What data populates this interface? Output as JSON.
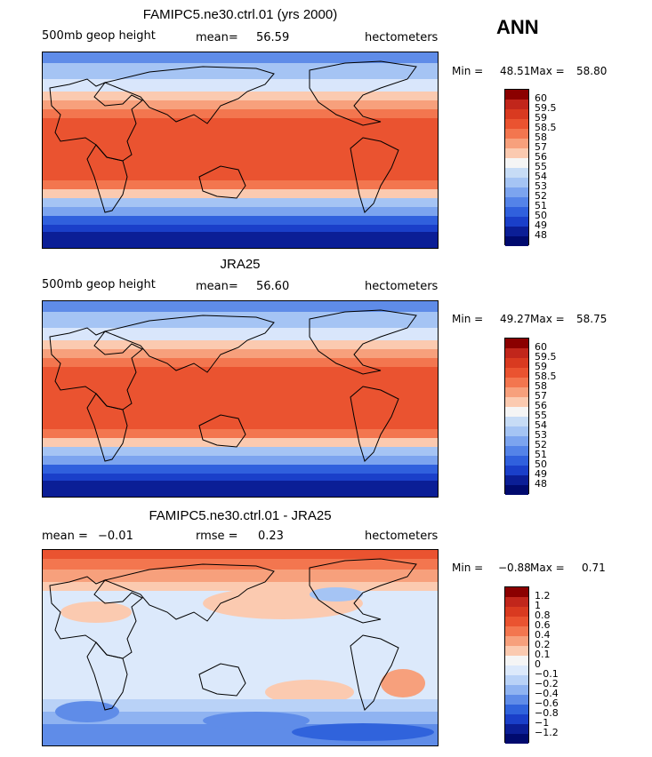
{
  "season": "ANN",
  "panels": [
    {
      "title": "FAMIPC5.ne30.ctrl.01 (yrs 2000)",
      "left_label": "500mb geop height",
      "mean_label": "mean=",
      "mean_value": "56.59",
      "units": "hectometers",
      "min_label": "Min =",
      "min_value": "48.51",
      "max_label": "Max =",
      "max_value": "58.80"
    },
    {
      "title": "JRA25",
      "left_label": "500mb geop height",
      "mean_label": "mean=",
      "mean_value": "56.60",
      "units": "hectometers",
      "min_label": "Min =",
      "min_value": "49.27",
      "max_label": "Max =",
      "max_value": "58.75"
    },
    {
      "title": "FAMIPC5.ne30.ctrl.01 - JRA25",
      "left_label": "mean =",
      "left_value": "−0.01",
      "mean_label": "rmse =",
      "mean_value": "0.23",
      "units": "hectometers",
      "min_label": "Min =",
      "min_value": "−0.88",
      "max_label": "Max =",
      "max_value": "0.71"
    }
  ],
  "chart_data": [
    {
      "type": "heatmap",
      "title": "FAMIPC5.ne30.ctrl.01 (yrs 2000)",
      "field": "500mb geop height",
      "units": "hectometers",
      "mean": 56.59,
      "min": 48.51,
      "max": 58.8,
      "xlim": [
        0,
        360
      ],
      "ylim": [
        -90,
        90
      ],
      "colorbar_levels": [
        "60",
        "59.5",
        "59",
        "58.5",
        "58",
        "57",
        "56",
        "55",
        "54",
        "53",
        "52",
        "51",
        "50",
        "49",
        "48"
      ],
      "colorbar_colors": [
        "#8b0000",
        "#c1261b",
        "#d93a20",
        "#ea5330",
        "#f3764f",
        "#f7a07c",
        "#fbcab0",
        "#f5f5f5",
        "#c7dcf6",
        "#a5c4f4",
        "#7ca4ef",
        "#5483e8",
        "#3060dd",
        "#1a3fc9",
        "#0b1e96",
        "#000a6e"
      ]
    },
    {
      "type": "heatmap",
      "title": "JRA25",
      "field": "500mb geop height",
      "units": "hectometers",
      "mean": 56.6,
      "min": 49.27,
      "max": 58.75,
      "xlim": [
        0,
        360
      ],
      "ylim": [
        -90,
        90
      ],
      "colorbar_levels": [
        "60",
        "59.5",
        "59",
        "58.5",
        "58",
        "57",
        "56",
        "55",
        "54",
        "53",
        "52",
        "51",
        "50",
        "49",
        "48"
      ],
      "colorbar_colors": [
        "#8b0000",
        "#c1261b",
        "#d93a20",
        "#ea5330",
        "#f3764f",
        "#f7a07c",
        "#fbcab0",
        "#f5f5f5",
        "#c7dcf6",
        "#a5c4f4",
        "#7ca4ef",
        "#5483e8",
        "#3060dd",
        "#1a3fc9",
        "#0b1e96",
        "#000a6e"
      ]
    },
    {
      "type": "heatmap",
      "title": "FAMIPC5.ne30.ctrl.01 - JRA25",
      "units": "hectometers",
      "mean": -0.01,
      "rmse": 0.23,
      "min": -0.88,
      "max": 0.71,
      "xlim": [
        0,
        360
      ],
      "ylim": [
        -90,
        90
      ],
      "colorbar_levels": [
        "1.2",
        "1",
        "0.8",
        "0.6",
        "0.4",
        "0.2",
        "0.1",
        "0",
        "−0.1",
        "−0.2",
        "−0.4",
        "−0.6",
        "−0.8",
        "−1",
        "−1.2"
      ],
      "colorbar_colors": [
        "#8b0000",
        "#c1261b",
        "#d93a20",
        "#ea5330",
        "#f3764f",
        "#f7a07c",
        "#fbcab0",
        "#f5f5f5",
        "#dce9fb",
        "#b9d2f7",
        "#8fb3f1",
        "#5f8ce8",
        "#3063dc",
        "#1a3fc9",
        "#0b1e96",
        "#000a6e"
      ]
    }
  ]
}
